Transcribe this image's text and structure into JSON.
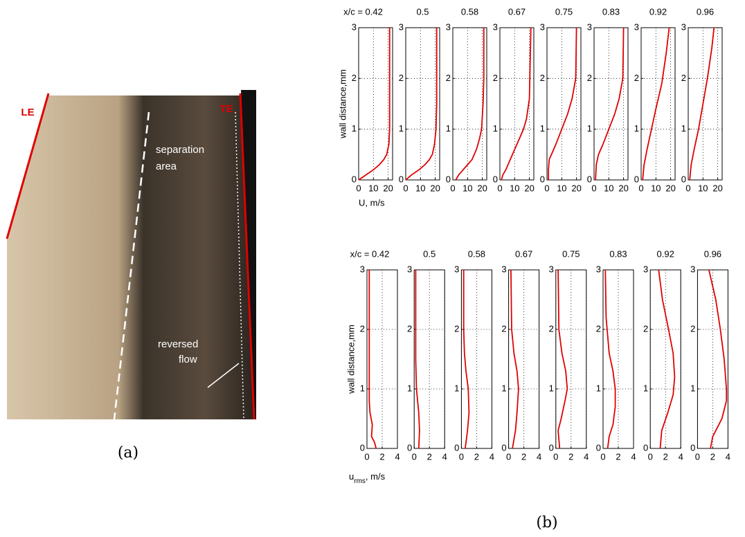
{
  "chart_data": [
    {
      "type": "line",
      "title": "x/c = 0.42",
      "ylabel": "wall distance,mm",
      "xlabel": "U, m/s",
      "xlim": [
        0,
        23
      ],
      "ylim": [
        0,
        3
      ],
      "xticks": [
        0,
        10,
        20
      ],
      "yticks": [
        0,
        1,
        2,
        3
      ],
      "grid": true,
      "series": [
        {
          "color": "#e00000",
          "x": [
            0,
            5,
            10,
            14,
            17,
            19,
            20.5,
            21,
            21,
            21,
            21
          ],
          "values": [
            0,
            0.1,
            0.2,
            0.3,
            0.4,
            0.5,
            0.7,
            1,
            1.5,
            2,
            3
          ]
        }
      ]
    },
    {
      "type": "line",
      "title": "0.5",
      "xlim": [
        0,
        23
      ],
      "ylim": [
        0,
        3
      ],
      "xticks": [
        0,
        10,
        20
      ],
      "yticks": [
        0,
        1,
        2,
        3
      ],
      "grid": true,
      "series": [
        {
          "color": "#e00000",
          "x": [
            0,
            4,
            9,
            13,
            16,
            18,
            19.5,
            20.5,
            21,
            21,
            21
          ],
          "values": [
            0,
            0.1,
            0.2,
            0.3,
            0.4,
            0.5,
            0.7,
            1,
            1.5,
            2,
            3
          ]
        }
      ]
    },
    {
      "type": "line",
      "title": "0.58",
      "xlim": [
        0,
        23
      ],
      "ylim": [
        0,
        3
      ],
      "xticks": [
        0,
        10,
        20
      ],
      "yticks": [
        0,
        1,
        2,
        3
      ],
      "grid": true,
      "series": [
        {
          "color": "#e00000",
          "x": [
            2,
            4,
            7,
            10,
            13,
            16,
            18,
            19.5,
            20.5,
            21,
            21
          ],
          "values": [
            0,
            0.1,
            0.2,
            0.3,
            0.4,
            0.6,
            0.8,
            1,
            1.5,
            2,
            3
          ]
        }
      ]
    },
    {
      "type": "line",
      "title": "0.67",
      "xlim": [
        0,
        23
      ],
      "ylim": [
        0,
        3
      ],
      "xticks": [
        0,
        10,
        20
      ],
      "yticks": [
        0,
        1,
        2,
        3
      ],
      "grid": true,
      "series": [
        {
          "color": "#e00000",
          "x": [
            1,
            2,
            4,
            7,
            10,
            13,
            16,
            18,
            20,
            21
          ],
          "values": [
            0,
            0.1,
            0.2,
            0.4,
            0.6,
            0.8,
            1,
            1.2,
            1.6,
            3
          ]
        }
      ]
    },
    {
      "type": "line",
      "title": "0.75",
      "xlim": [
        0,
        23
      ],
      "ylim": [
        0,
        3
      ],
      "xticks": [
        0,
        10,
        20
      ],
      "yticks": [
        0,
        1,
        2,
        3
      ],
      "grid": true,
      "series": [
        {
          "color": "#e00000",
          "x": [
            1,
            1,
            1.5,
            3,
            6,
            10,
            14,
            17,
            19.5,
            20
          ],
          "values": [
            0,
            0.2,
            0.4,
            0.5,
            0.7,
            1,
            1.3,
            1.6,
            2,
            3
          ]
        }
      ]
    },
    {
      "type": "line",
      "title": "0.83",
      "xlim": [
        0,
        23
      ],
      "ylim": [
        0,
        3
      ],
      "xticks": [
        0,
        10,
        20
      ],
      "yticks": [
        0,
        1,
        2,
        3
      ],
      "grid": true,
      "series": [
        {
          "color": "#e00000",
          "x": [
            1,
            1.5,
            3,
            6,
            10,
            14,
            17,
            19.5,
            20
          ],
          "values": [
            0,
            0.3,
            0.5,
            0.7,
            1,
            1.3,
            1.6,
            2,
            3
          ]
        }
      ]
    },
    {
      "type": "line",
      "title": "0.92",
      "xlim": [
        0,
        23
      ],
      "ylim": [
        0,
        3
      ],
      "xticks": [
        0,
        10,
        20
      ],
      "yticks": [
        0,
        1,
        2,
        3
      ],
      "grid": true,
      "series": [
        {
          "color": "#e00000",
          "x": [
            1,
            2,
            4,
            7,
            10,
            14,
            17,
            19
          ],
          "values": [
            0,
            0.3,
            0.6,
            1,
            1.4,
            1.9,
            2.5,
            3
          ]
        }
      ]
    },
    {
      "type": "line",
      "title": "0.96",
      "xlim": [
        0,
        23
      ],
      "ylim": [
        0,
        3
      ],
      "xticks": [
        0,
        10,
        20
      ],
      "yticks": [
        0,
        1,
        2,
        3
      ],
      "grid": true,
      "series": [
        {
          "color": "#e00000",
          "x": [
            1,
            2,
            4,
            7,
            10,
            13,
            16,
            17.5
          ],
          "values": [
            0,
            0.3,
            0.6,
            1,
            1.5,
            2,
            2.6,
            3
          ]
        }
      ]
    },
    {
      "type": "line",
      "title": "x/c = 0.42",
      "ylabel": "wall distance,mm",
      "xlabel_parts": [
        "u",
        "rms",
        ", m/s"
      ],
      "xlim": [
        0,
        4
      ],
      "ylim": [
        0,
        3
      ],
      "xticks": [
        0,
        2,
        4
      ],
      "yticks": [
        0,
        1,
        2,
        3
      ],
      "grid": true,
      "series": [
        {
          "color": "#e00000",
          "x": [
            1.2,
            1,
            0.6,
            0.7,
            0.4,
            0.3,
            0.3,
            0.3,
            0.3
          ],
          "values": [
            0,
            0.1,
            0.2,
            0.4,
            0.6,
            0.8,
            1,
            2,
            3
          ]
        }
      ]
    },
    {
      "type": "line",
      "title": "0.5",
      "xlim": [
        0,
        4
      ],
      "ylim": [
        0,
        3
      ],
      "xticks": [
        0,
        2,
        4
      ],
      "yticks": [
        0,
        1,
        2,
        3
      ],
      "grid": true,
      "series": [
        {
          "color": "#e00000",
          "x": [
            0.6,
            0.7,
            0.6,
            0.3,
            0.2,
            0.2,
            0.2
          ],
          "values": [
            0,
            0.3,
            0.6,
            1,
            1.5,
            2,
            3
          ]
        }
      ]
    },
    {
      "type": "line",
      "title": "0.58",
      "xlim": [
        0,
        4
      ],
      "ylim": [
        0,
        3
      ],
      "xticks": [
        0,
        2,
        4
      ],
      "yticks": [
        0,
        1,
        2,
        3
      ],
      "grid": true,
      "series": [
        {
          "color": "#e00000",
          "x": [
            0.5,
            0.8,
            1,
            0.9,
            0.6,
            0.4,
            0.3,
            0.3
          ],
          "values": [
            0,
            0.3,
            0.6,
            1,
            1.3,
            1.6,
            2,
            3
          ]
        }
      ]
    },
    {
      "type": "line",
      "title": "0.67",
      "xlim": [
        0,
        4
      ],
      "ylim": [
        0,
        3
      ],
      "xticks": [
        0,
        2,
        4
      ],
      "yticks": [
        0,
        1,
        2,
        3
      ],
      "grid": true,
      "series": [
        {
          "color": "#e00000",
          "x": [
            0.5,
            0.9,
            1.1,
            1.3,
            1.1,
            0.7,
            0.4,
            0.3
          ],
          "values": [
            0,
            0.3,
            0.6,
            1,
            1.3,
            1.6,
            2,
            3
          ]
        }
      ]
    },
    {
      "type": "line",
      "title": "0.75",
      "xlim": [
        0,
        4
      ],
      "ylim": [
        0,
        3
      ],
      "xticks": [
        0,
        2,
        4
      ],
      "yticks": [
        0,
        1,
        2,
        3
      ],
      "grid": true,
      "series": [
        {
          "color": "#e00000",
          "x": [
            0.5,
            0.3,
            0.7,
            1.2,
            1.5,
            1.3,
            0.8,
            0.4,
            0.3
          ],
          "values": [
            0,
            0.3,
            0.5,
            0.8,
            1,
            1.3,
            1.6,
            2,
            3
          ]
        }
      ]
    },
    {
      "type": "line",
      "title": "0.83",
      "xlim": [
        0,
        4
      ],
      "ylim": [
        0,
        3
      ],
      "xticks": [
        0,
        2,
        4
      ],
      "yticks": [
        0,
        1,
        2,
        3
      ],
      "grid": true,
      "series": [
        {
          "color": "#e00000",
          "x": [
            0.6,
            0.8,
            1.3,
            1.6,
            1.6,
            1.3,
            0.8,
            0.4,
            0.3
          ],
          "values": [
            0,
            0.2,
            0.4,
            0.7,
            1,
            1.3,
            1.6,
            2.2,
            3
          ]
        }
      ]
    },
    {
      "type": "line",
      "title": "0.92",
      "xlim": [
        0,
        4
      ],
      "ylim": [
        0,
        3
      ],
      "xticks": [
        0,
        2,
        4
      ],
      "yticks": [
        0,
        1,
        2,
        3
      ],
      "grid": true,
      "series": [
        {
          "color": "#e00000",
          "x": [
            1.3,
            1.5,
            2.3,
            3,
            3.2,
            3,
            2.4,
            1.6,
            1.1
          ],
          "values": [
            0,
            0.3,
            0.6,
            0.9,
            1.2,
            1.6,
            2,
            2.5,
            3
          ]
        }
      ]
    },
    {
      "type": "line",
      "title": "0.96",
      "xlim": [
        0,
        4
      ],
      "ylim": [
        0,
        3
      ],
      "xticks": [
        0,
        2,
        4
      ],
      "yticks": [
        0,
        1,
        2,
        3
      ],
      "grid": true,
      "series": [
        {
          "color": "#e00000",
          "x": [
            1.7,
            2,
            3.2,
            3.8,
            3.8,
            3.5,
            3,
            2.4,
            1.5
          ],
          "values": [
            0,
            0.2,
            0.5,
            0.8,
            1,
            1.5,
            2,
            2.5,
            3
          ]
        }
      ]
    }
  ],
  "photo": {
    "le": "LE",
    "te": "TE",
    "separation": [
      "separation",
      "area"
    ],
    "reversed": [
      "reversed",
      "flow"
    ]
  },
  "captions": {
    "a": "(a)",
    "b": "(b)"
  }
}
